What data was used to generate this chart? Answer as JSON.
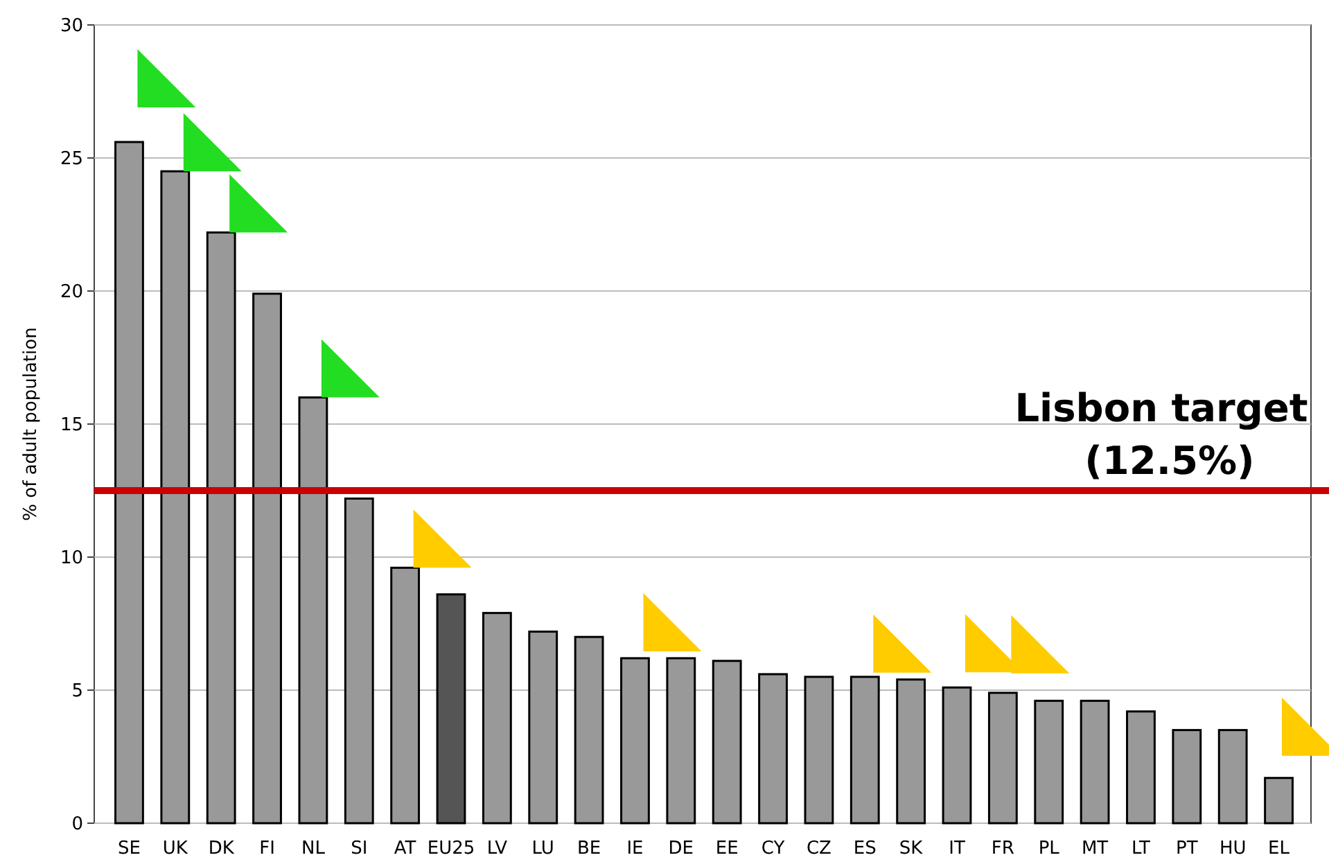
{
  "chart_data": {
    "type": "bar",
    "ylabel": "% of adult population",
    "categories": [
      "SE",
      "UK",
      "DK",
      "FI",
      "NL",
      "SI",
      "AT",
      "EU25",
      "LV",
      "LU",
      "BE",
      "IE",
      "DE",
      "EE",
      "CY",
      "CZ",
      "ES",
      "SK",
      "IT",
      "FR",
      "PL",
      "MT",
      "LT",
      "PT",
      "HU",
      "EL"
    ],
    "values": [
      25.6,
      24.5,
      22.2,
      19.9,
      16.0,
      12.2,
      9.6,
      8.6,
      7.9,
      7.2,
      7.0,
      6.2,
      6.2,
      6.1,
      5.6,
      5.5,
      5.5,
      5.4,
      5.1,
      4.9,
      4.6,
      4.6,
      4.2,
      3.5,
      3.5,
      1.7
    ],
    "colors": [
      "#999999",
      "#999999",
      "#999999",
      "#999999",
      "#999999",
      "#999999",
      "#999999",
      "#555555",
      "#999999",
      "#999999",
      "#999999",
      "#999999",
      "#999999",
      "#999999",
      "#999999",
      "#999999",
      "#999999",
      "#999999",
      "#999999",
      "#999999",
      "#999999",
      "#999999",
      "#999999",
      "#999999",
      "#999999",
      "#999999"
    ],
    "ylim": [
      0,
      30
    ],
    "yticks": [
      0,
      5,
      10,
      15,
      20,
      25,
      30
    ],
    "grid": "y",
    "ref_lines": [
      {
        "axis": "y",
        "value": 12.5,
        "label": "Lisbon target (12.5%)",
        "color": "#cc0000"
      }
    ]
  }
}
